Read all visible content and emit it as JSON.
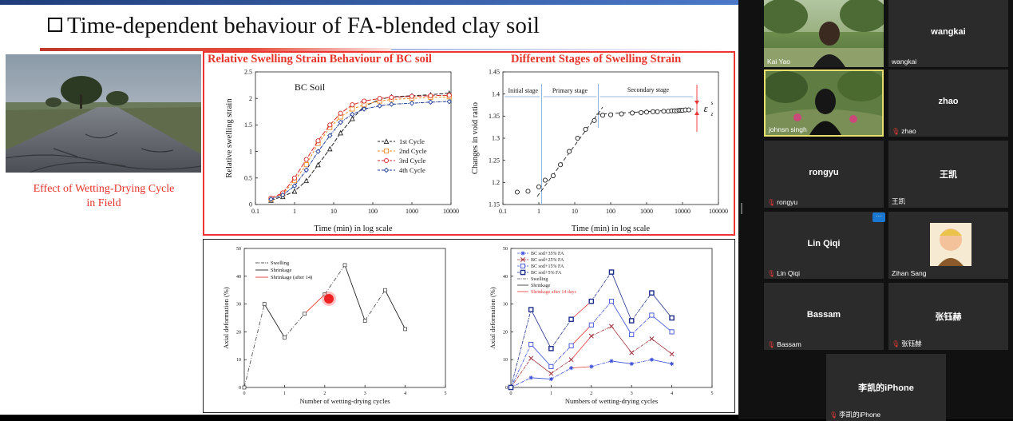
{
  "slide": {
    "title": "Time-dependent behaviour of FA-blended clay soil",
    "road_caption_line1": "Effect of Wetting-Drying Cycle",
    "road_caption_line2": "in Field"
  },
  "chart_data": [
    {
      "type": "line",
      "title": "Relative Swelling Strain Behaviour of BC soil",
      "annotation": "BC Soil",
      "xlabel": "Time (min) in log scale",
      "ylabel": "Relative swelling strain",
      "xscale": "log",
      "xlim": [
        0.1,
        10000
      ],
      "ylim": [
        0,
        2.5
      ],
      "xticks": [
        "0.1",
        "1",
        "10",
        "100",
        "1000",
        "10000"
      ],
      "yticks": [
        "0",
        "0.5",
        "1",
        "1.5",
        "2",
        "2.5"
      ],
      "legend_position": "right",
      "series": [
        {
          "name": "1st Cycle",
          "color": "#222222",
          "marker": "triangle",
          "x": [
            0.25,
            0.5,
            1,
            2,
            4,
            8,
            15,
            30,
            60,
            150,
            300,
            1000,
            3000,
            9000
          ],
          "y": [
            0.08,
            0.15,
            0.25,
            0.45,
            0.75,
            1.05,
            1.35,
            1.62,
            1.85,
            1.98,
            2.03,
            2.05,
            2.07,
            2.1
          ]
        },
        {
          "name": "2nd Cycle",
          "color": "#f28c28",
          "marker": "square",
          "x": [
            0.25,
            0.5,
            1,
            2,
            4,
            8,
            15,
            30,
            60,
            150,
            300,
            1000,
            3000,
            9000
          ],
          "y": [
            0.1,
            0.2,
            0.45,
            0.75,
            1.15,
            1.45,
            1.65,
            1.8,
            1.88,
            1.95,
            1.98,
            2.0,
            2.02,
            2.03
          ]
        },
        {
          "name": "3rd Cycle",
          "color": "#d62728",
          "marker": "circle",
          "x": [
            0.25,
            0.5,
            1,
            2,
            4,
            8,
            15,
            30,
            60,
            150,
            300,
            1000,
            3000,
            9000
          ],
          "y": [
            0.12,
            0.22,
            0.5,
            0.85,
            1.2,
            1.5,
            1.72,
            1.88,
            1.95,
            2.0,
            2.02,
            2.04,
            2.05,
            2.06
          ]
        },
        {
          "name": "4th Cycle",
          "color": "#1f3a93",
          "marker": "diamond",
          "x": [
            0.25,
            0.5,
            1,
            2,
            4,
            8,
            15,
            30,
            60,
            150,
            300,
            1000,
            3000,
            9000
          ],
          "y": [
            0.1,
            0.18,
            0.35,
            0.65,
            1.0,
            1.3,
            1.55,
            1.7,
            1.8,
            1.86,
            1.89,
            1.91,
            1.93,
            1.94
          ]
        }
      ]
    },
    {
      "type": "scatter",
      "title": "Different Stages of Swelling Strain",
      "xlabel": "Time (min) in log scale",
      "ylabel": "Changes in void ratio",
      "xscale": "log",
      "xlim": [
        0.1,
        100000
      ],
      "ylim": [
        1.15,
        1.45
      ],
      "xticks": [
        "0.1",
        "1",
        "10",
        "100",
        "1000",
        "10000",
        "100000"
      ],
      "yticks": [
        "1.15",
        "1.2",
        "1.25",
        "1.3",
        "1.35",
        "1.4",
        "1.45"
      ],
      "stage_labels": [
        "Initial stage",
        "Primary stage",
        "Secondary stage"
      ],
      "stage_boundaries": [
        1.2,
        45
      ],
      "epsilon_label": "ε",
      "epsilon_sup": "s",
      "epsilon_sub": "z",
      "series": [
        {
          "name": "",
          "color": "#222222",
          "x": [
            0.25,
            0.5,
            1,
            1.5,
            2.5,
            4,
            7,
            12,
            20,
            35,
            60,
            100,
            200,
            400,
            700,
            1000,
            1500,
            2000,
            3000,
            4000,
            5000,
            6000,
            7000,
            8000,
            9000,
            10000,
            12000,
            15000
          ],
          "y": [
            1.178,
            1.18,
            1.19,
            1.205,
            1.215,
            1.24,
            1.27,
            1.3,
            1.32,
            1.34,
            1.352,
            1.353,
            1.355,
            1.357,
            1.358,
            1.359,
            1.36,
            1.36,
            1.361,
            1.361,
            1.362,
            1.362,
            1.362,
            1.363,
            1.363,
            1.363,
            1.364,
            1.364
          ]
        }
      ]
    },
    {
      "type": "line",
      "xlabel": "Number of wetting-drying cycles",
      "ylabel": "Axial deformation (%)",
      "xlim": [
        0,
        5
      ],
      "ylim": [
        0,
        50
      ],
      "xticks": [
        "0",
        "1",
        "2",
        "3",
        "4",
        "5"
      ],
      "yticks": [
        "0",
        "10",
        "20",
        "30",
        "40",
        "50"
      ],
      "legend_position": "top-left",
      "series": [
        {
          "name": "Swelling",
          "color": "#555555",
          "style": "dashdot",
          "x": [
            0,
            0.5,
            1,
            1.5,
            2,
            2.5,
            3,
            3.5,
            4
          ],
          "y": [
            0,
            30,
            18,
            26.5,
            33.5,
            44,
            24,
            35,
            21
          ]
        },
        {
          "name": "Shrinkage",
          "color": "#222222",
          "style": "solid"
        },
        {
          "name": "Shrinkage (after 14)",
          "color": "#e53935",
          "style": "solid"
        }
      ]
    },
    {
      "type": "line",
      "xlabel": "Numbers of wetting-drying cycles",
      "ylabel": "Axial deformation (%)",
      "xlim": [
        0,
        5
      ],
      "ylim": [
        0,
        50
      ],
      "xticks": [
        "0",
        "1",
        "2",
        "3",
        "4",
        "5"
      ],
      "yticks": [
        "0",
        "10",
        "20",
        "30",
        "40",
        "50"
      ],
      "legend_position": "top-left",
      "series": [
        {
          "name": "BC soil+35% FA",
          "color": "#3b4fd8",
          "marker": "star",
          "x": [
            0,
            0.5,
            1,
            1.5,
            2,
            2.5,
            3,
            3.5,
            4
          ],
          "y": [
            0,
            3.5,
            3,
            7,
            7.5,
            9.5,
            8.5,
            10,
            8.5
          ]
        },
        {
          "name": "BC soil+25% FA",
          "color": "#a0303a",
          "marker": "cross",
          "x": [
            0,
            0.5,
            1,
            1.5,
            2,
            2.5,
            3,
            3.5,
            4
          ],
          "y": [
            0,
            10.5,
            5,
            10,
            18.5,
            22,
            12.5,
            17.5,
            12
          ]
        },
        {
          "name": "BC soil+15% FA",
          "color": "#3b4fd8",
          "marker": "square",
          "x": [
            0,
            0.5,
            1,
            1.5,
            2,
            2.5,
            3,
            3.5,
            4
          ],
          "y": [
            0,
            15.5,
            7.5,
            15,
            22.5,
            31,
            19,
            26,
            20
          ]
        },
        {
          "name": "BC soil+5% FA",
          "color": "#1f2f8a",
          "marker": "square-dark",
          "x": [
            0,
            0.5,
            1,
            1.5,
            2,
            2.5,
            3,
            3.5,
            4
          ],
          "y": [
            0,
            28,
            14,
            24.5,
            31,
            41.5,
            24,
            34,
            25
          ]
        },
        {
          "name": "Swelling",
          "color": "#555555",
          "style": "dashdot"
        },
        {
          "name": "Shrinkage",
          "color": "#222222",
          "style": "solid"
        },
        {
          "name": "Shrinkage after 14 days",
          "color": "#e53935",
          "style": "solid"
        }
      ]
    }
  ],
  "participants": [
    {
      "name": "Kai Yao",
      "video": "trees",
      "muted": false
    },
    {
      "name": "wangkai",
      "center": "wangkai",
      "muted": false
    },
    {
      "name": "johnsn singh",
      "video": "garden",
      "muted": false,
      "active": true
    },
    {
      "name": "zhao",
      "center": "zhao",
      "muted": true
    },
    {
      "name": "rongyu",
      "center": "rongyu",
      "muted": true
    },
    {
      "name": "王凯",
      "center": "王凯",
      "muted": false
    },
    {
      "name": "Lin Qiqi",
      "center": "Lin Qiqi",
      "muted": true
    },
    {
      "name": "Zihan Sang",
      "video": "avatar",
      "muted": false
    },
    {
      "name": "Bassam",
      "center": "Bassam",
      "muted": true
    },
    {
      "name": "张钰赫",
      "center": "张钰赫",
      "muted": true
    },
    {
      "name": "李凯的iPhone",
      "center": "李凯的iPhone",
      "muted": true
    }
  ],
  "more_button": "···",
  "mic_icon": "muted-mic-icon"
}
